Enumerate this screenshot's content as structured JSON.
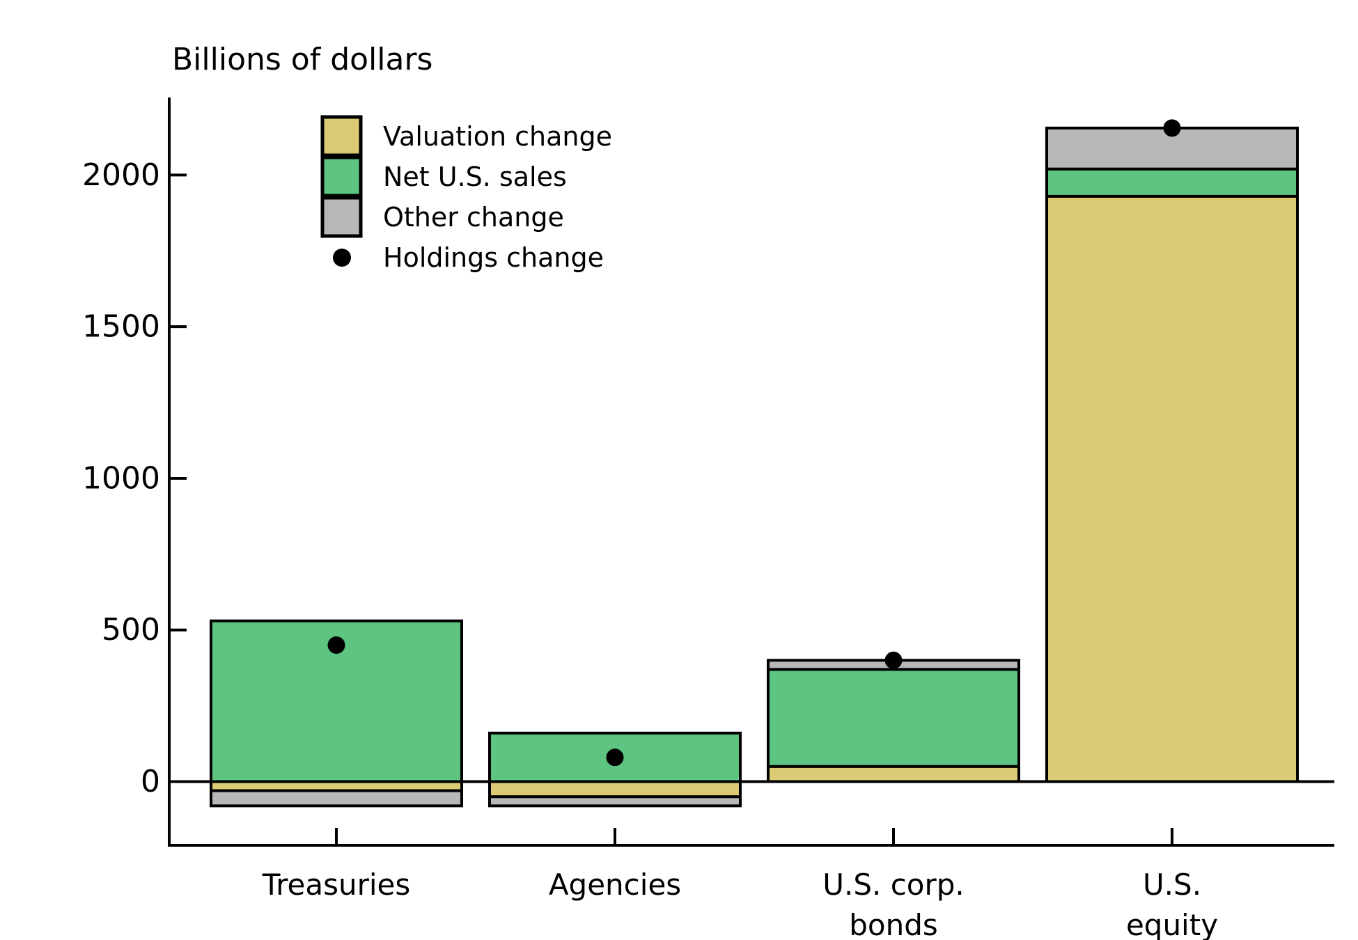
{
  "chart_data": {
    "type": "bar",
    "stacked": true,
    "title": "Billions of dollars",
    "xlabel": "",
    "ylabel": "Billions of dollars",
    "grid": false,
    "legend_position": "upper-left-inside",
    "categories": [
      "Treasuries",
      "Agencies",
      "U.S. corp. bonds",
      "U.S. equity"
    ],
    "category_lines": [
      [
        "Treasuries"
      ],
      [
        "Agencies"
      ],
      [
        "U.S. corp.",
        "bonds"
      ],
      [
        "U.S.",
        "equity"
      ]
    ],
    "series": [
      {
        "name": "Valuation change",
        "color": "#dbcb75",
        "values": [
          -30,
          -50,
          50,
          1930
        ]
      },
      {
        "name": "Net U.S. sales",
        "color": "#5ec482",
        "values": [
          530,
          160,
          320,
          90
        ]
      },
      {
        "name": "Other change",
        "color": "#b8b8b8",
        "values": [
          -50,
          -30,
          30,
          135
        ]
      }
    ],
    "markers": {
      "name": "Holdings change",
      "color": "#000000",
      "values": [
        450,
        80,
        400,
        2155
      ]
    },
    "yticks": [
      0,
      500,
      1000,
      1500,
      2000
    ],
    "ylim": [
      -210,
      2255
    ]
  },
  "colors": {
    "axis": "#000000",
    "bar_outline": "#000000",
    "background": "#ffffff"
  }
}
